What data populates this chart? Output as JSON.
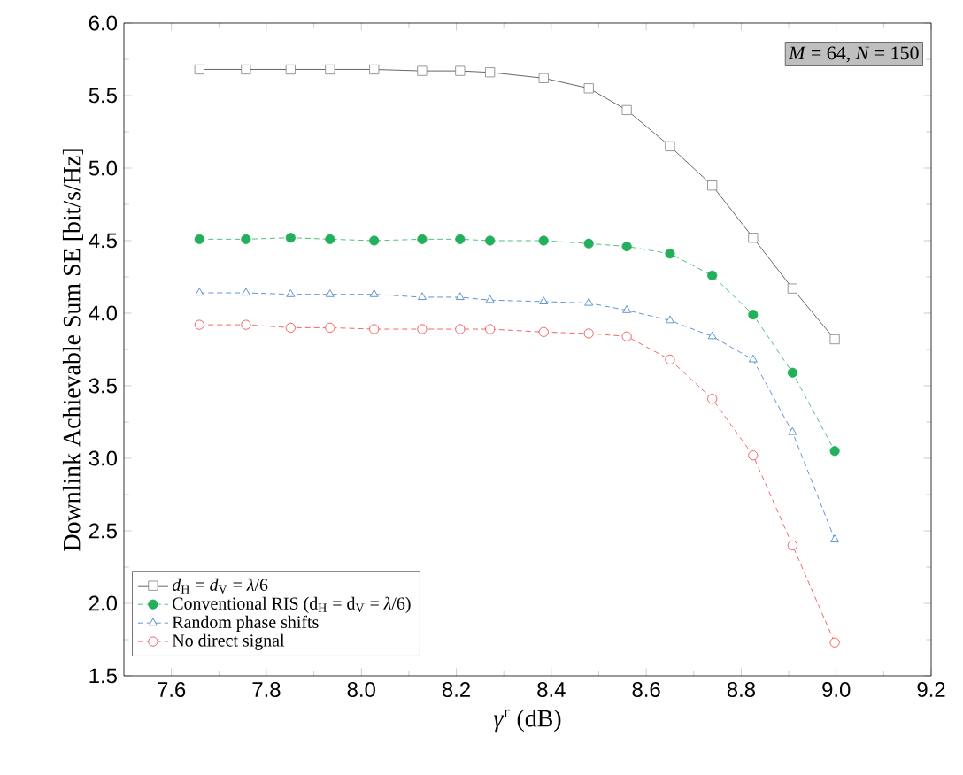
{
  "chart_data": {
    "type": "line",
    "xlabel": "*γ*$^{r}$ (dB)",
    "ylabel": "Downlink Achievable Sum SE [bit/s/Hz]",
    "x": [
      7.659,
      7.757,
      7.851,
      7.934,
      8.027,
      8.128,
      8.208,
      8.271,
      8.384,
      8.479,
      8.559,
      8.65,
      8.739,
      8.825,
      8.908,
      8.997
    ],
    "series": [
      {
        "name": "*d*$_{H}$ = *d*$_{V}$ = *λ*/6",
        "color": "#404040",
        "marker": "square",
        "line_style": "solid",
        "values": [
          5.68,
          5.68,
          5.68,
          5.68,
          5.68,
          5.67,
          5.67,
          5.66,
          5.62,
          5.55,
          5.4,
          5.15,
          4.88,
          4.52,
          4.17,
          3.82
        ]
      },
      {
        "name": "Conventional RIS (d$_{H}$ = d$_{V}$ = *λ*/6)",
        "color": "#22b05a",
        "marker": "circle",
        "line_style": "dashed",
        "values": [
          4.51,
          4.51,
          4.52,
          4.51,
          4.5,
          4.51,
          4.51,
          4.5,
          4.5,
          4.48,
          4.46,
          4.41,
          4.26,
          3.99,
          3.59,
          3.05
        ]
      },
      {
        "name": "Random phase shifts",
        "color": "#3a78c8",
        "marker": "triangle",
        "line_style": "dashed",
        "values": [
          4.14,
          4.14,
          4.13,
          4.13,
          4.13,
          4.11,
          4.11,
          4.09,
          4.08,
          4.07,
          4.02,
          3.95,
          3.84,
          3.68,
          3.18,
          2.44
        ]
      },
      {
        "name": "No direct signal",
        "color": "#f04040",
        "marker": "circle",
        "line_style": "dashed",
        "values": [
          3.92,
          3.92,
          3.9,
          3.9,
          3.89,
          3.89,
          3.89,
          3.89,
          3.87,
          3.86,
          3.84,
          3.68,
          3.41,
          3.02,
          2.4,
          1.73
        ]
      }
    ],
    "xlim": [
      7.5,
      9.2
    ],
    "xticks": [
      7.6,
      7.8,
      {
        "value": 8.0,
        "label": "8.0"
      },
      8.2,
      8.4,
      8.6,
      8.8,
      {
        "value": 9.0,
        "label": "9.0"
      },
      9.2
    ],
    "ylim": [
      1.5,
      6.0
    ],
    "yticks": [
      {
        "value": 1.5,
        "label": "1.5"
      },
      {
        "value": 2.0,
        "label": "2.0"
      },
      {
        "value": 2.5,
        "label": "2.5"
      },
      {
        "value": 3.0,
        "label": "3.0"
      },
      {
        "value": 3.5,
        "label": "3.5"
      },
      {
        "value": 4.0,
        "label": "4.0"
      },
      {
        "value": 4.5,
        "label": "4.5"
      },
      {
        "value": 5.0,
        "label": "5.0"
      },
      {
        "value": 5.5,
        "label": "5.5"
      },
      {
        "value": 6.0,
        "label": "6.0"
      }
    ],
    "grid": false,
    "legend": "bottom left",
    "annotations": [
      "*M* = 64, *N* = 150"
    ]
  }
}
